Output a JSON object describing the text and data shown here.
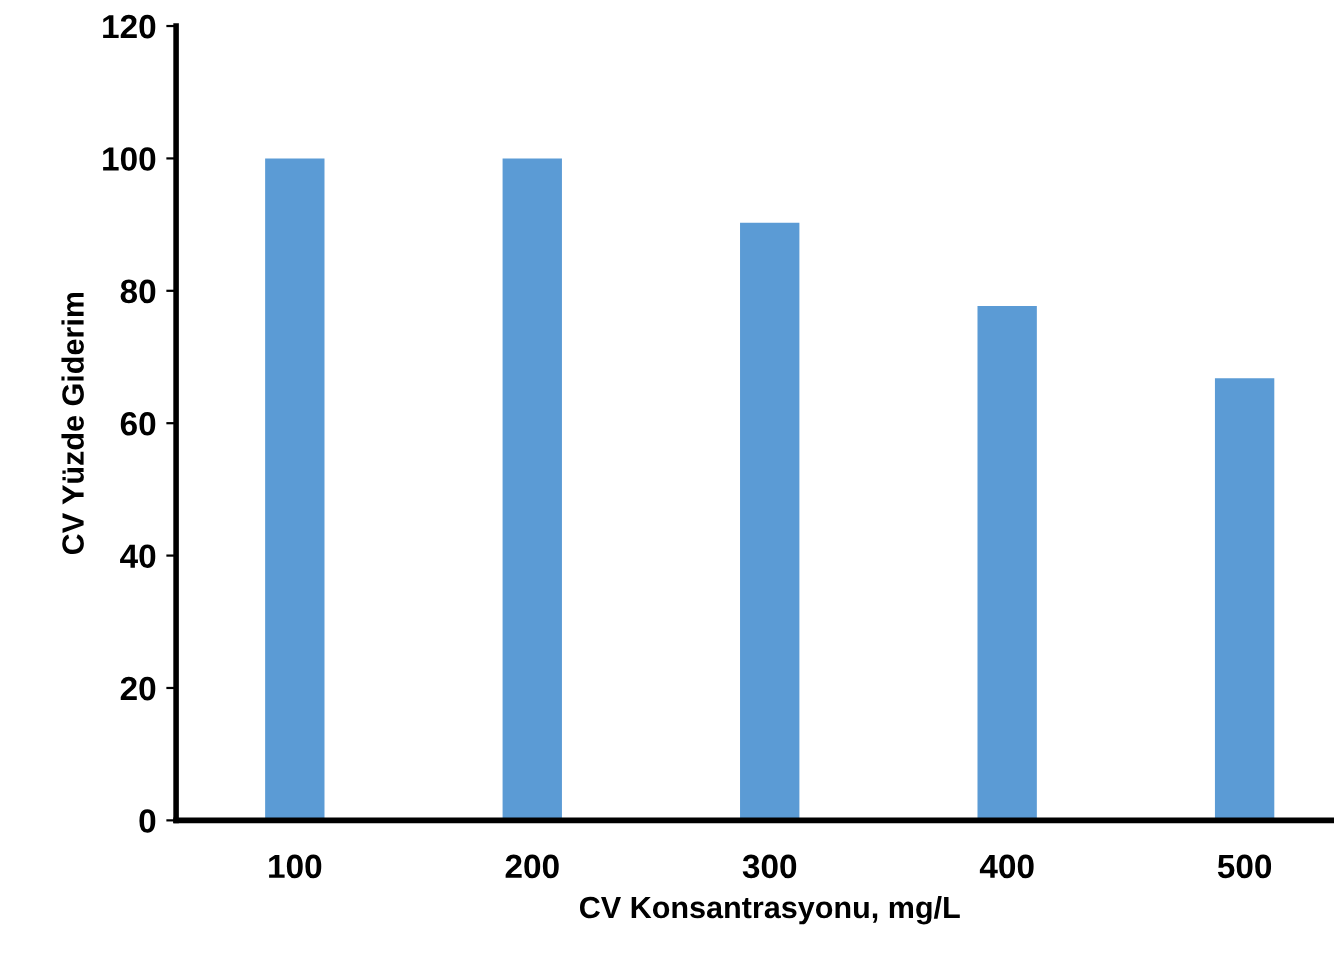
{
  "chart_data": {
    "type": "bar",
    "xlabel": "CV Konsantrasyonu, mg/L",
    "ylabel": "CV Yüzde Giderim",
    "categories": [
      "100",
      "200",
      "300",
      "400",
      "500"
    ],
    "values": [
      100,
      100,
      90.3,
      77.7,
      66.8
    ],
    "color": "#5b9bd5",
    "ylim": [
      0,
      120
    ],
    "yticks": [
      0,
      20,
      40,
      60,
      80,
      100,
      120
    ],
    "grid": false,
    "legend": false
  }
}
